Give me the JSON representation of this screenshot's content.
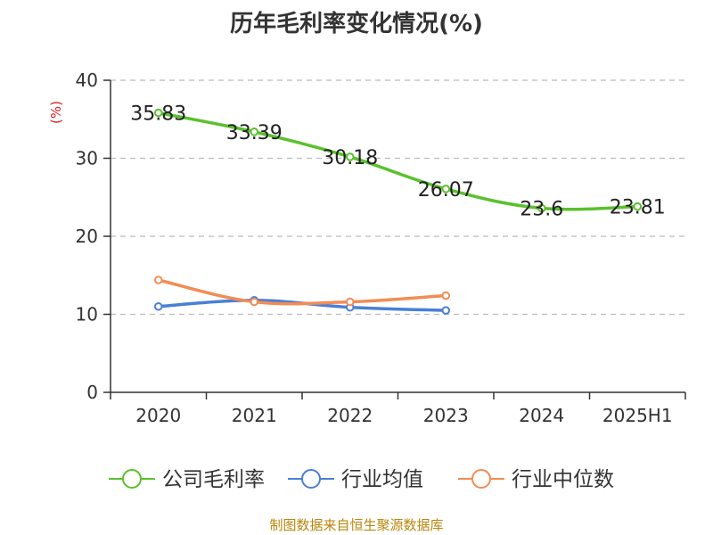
{
  "colors": {
    "company": "#5ac12d",
    "industry_avg": "#4a7fd6",
    "industry_median": "#f28c55",
    "axis": "#333333",
    "grid": "#bbbbbb",
    "unit": "#d62020",
    "footer": "#b8860b"
  },
  "footer_text": "制图数据来自恒生聚源数据库",
  "chart_data": {
    "type": "line",
    "title": "历年毛利率变化情况(%)",
    "ylabel": "(%)",
    "xlabel": "",
    "categories": [
      "2020",
      "2021",
      "2022",
      "2023",
      "2024",
      "2025H1"
    ],
    "ylim": [
      0,
      40
    ],
    "yticks": [
      0,
      10,
      20,
      30,
      40
    ],
    "grid": true,
    "legend_position": "bottom",
    "series": [
      {
        "name": "公司毛利率",
        "color_key": "company",
        "show_labels": true,
        "values": [
          35.83,
          33.39,
          30.18,
          26.07,
          23.6,
          23.81
        ]
      },
      {
        "name": "行业均值",
        "color_key": "industry_avg",
        "show_labels": false,
        "values": [
          11.0,
          11.8,
          10.9,
          10.5,
          null,
          null
        ]
      },
      {
        "name": "行业中位数",
        "color_key": "industry_median",
        "show_labels": false,
        "values": [
          14.4,
          11.6,
          11.6,
          12.4,
          null,
          null
        ]
      }
    ]
  }
}
